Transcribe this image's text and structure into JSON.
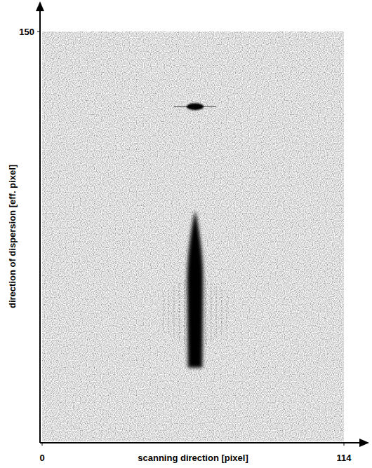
{
  "chart_data": {
    "type": "image",
    "xlabel": "scanning direction [pixel]",
    "ylabel": "direction of dispersion [eff. pixel]",
    "xlim": [
      0,
      114
    ],
    "ylim": [
      0,
      150
    ],
    "xticks": [
      0,
      114
    ],
    "yticks": [
      150
    ],
    "spectrum_x": 57.8,
    "spot": {
      "x": 57.8,
      "y": 122.5,
      "width": 6.4,
      "height": 2.6,
      "arm_width": 16
    },
    "blob": {
      "x": 57.8,
      "y_min": 27,
      "y_max": 84.5,
      "width": 6,
      "fringe_y_min": 33.3,
      "fringe_y_max": 61.5,
      "fringe_width": 24
    }
  }
}
